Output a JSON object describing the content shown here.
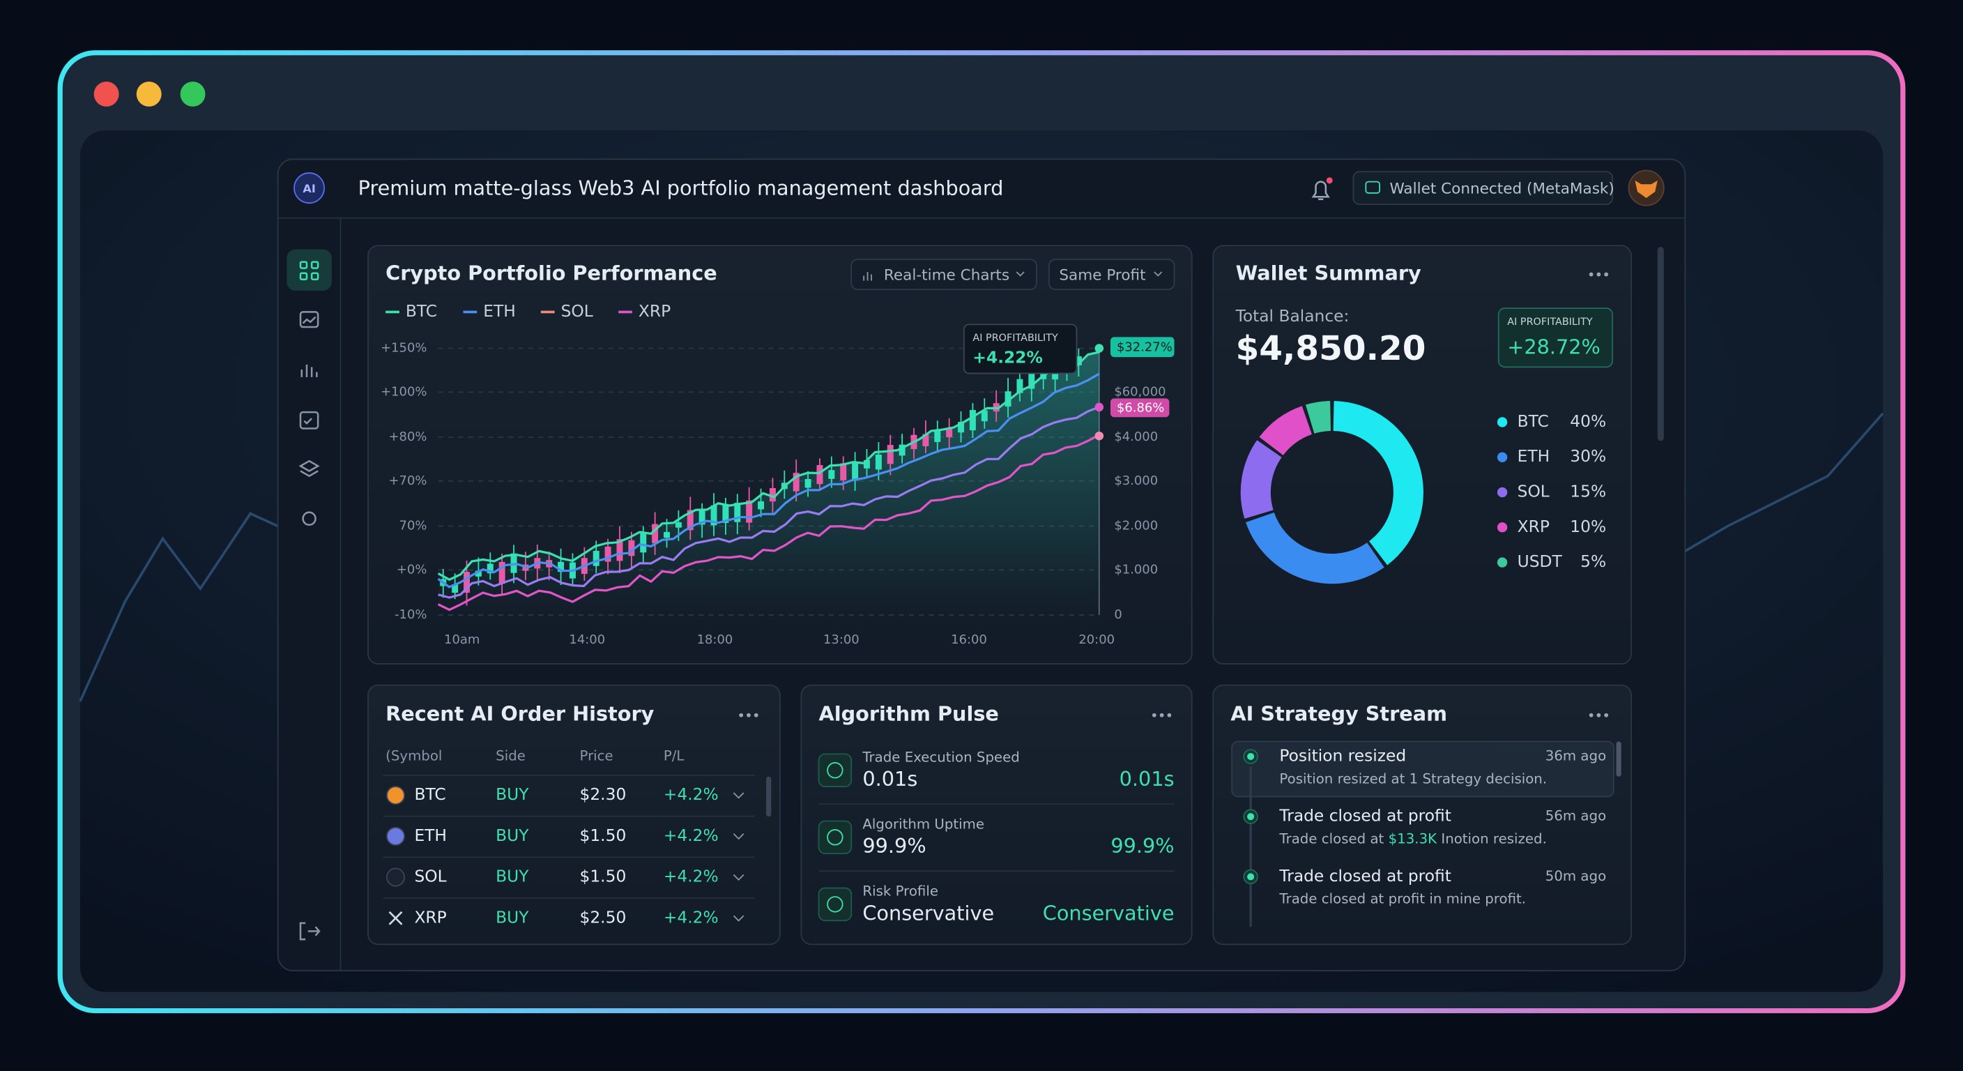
{
  "window": {
    "logo": "AI",
    "title": "Premium matte-glass Web3 AI portfolio management dashboard",
    "wallet": "Wallet Connected (MetaMask)"
  },
  "performance": {
    "title": "Crypto Portfolio Performance",
    "controls": [
      "Real-time Charts",
      "Same Profit"
    ],
    "legend": [
      {
        "name": "BTC",
        "color": "#3ee0b0"
      },
      {
        "name": "ETH",
        "color": "#4a90f0"
      },
      {
        "name": "SOL",
        "color": "#f08a7a"
      },
      {
        "name": "XRP",
        "color": "#e056c8"
      }
    ],
    "yticks": [
      "+150%",
      "+100%",
      "+80%",
      "+70%",
      "70%",
      "+0%",
      "-10%"
    ],
    "y2ticks": [
      "$60,000",
      "$4.000",
      "$3.000",
      "$2.000",
      "$1.000",
      "0"
    ],
    "xticks": [
      "10am",
      "14:00",
      "18:00",
      "13:00",
      "16:00",
      "20:00"
    ],
    "tooltip": {
      "label": "AI PROFITABILITY",
      "value": "+4.22%"
    },
    "badges": [
      "$32.27%",
      "$6.86%"
    ]
  },
  "wallet": {
    "title": "Wallet Summary",
    "balance_label": "Total Balance:",
    "balance": "$4,850.20",
    "badge_label": "AI PROFITABILITY",
    "badge_value": "+28.72%",
    "assets": [
      "BTC",
      "ETH",
      "SOL",
      "XRP",
      "USDT"
    ],
    "values": [
      40,
      30,
      15,
      10,
      5
    ],
    "value_labels": [
      "40%",
      "30%",
      "15%",
      "10%",
      "5%"
    ],
    "colors": [
      "#1ee8f0",
      "#3b8cf0",
      "#8d6cf0",
      "#e050c8",
      "#3cc99c"
    ]
  },
  "orders": {
    "title": "Recent AI Order History",
    "columns": [
      "(Symbol",
      "Side",
      "Price",
      "P/L"
    ],
    "rows": [
      [
        "BTC",
        "BUY",
        "$2.30",
        "+4.2%"
      ],
      [
        "ETH",
        "BUY",
        "$1.50",
        "+4.2%"
      ],
      [
        "SOL",
        "BUY",
        "$1.50",
        "+4.2%"
      ],
      [
        "XRP",
        "BUY",
        "$2.50",
        "+4.2%"
      ]
    ]
  },
  "pulse": {
    "title": "Algorithm Pulse",
    "items": [
      {
        "label": "Trade Execution Speed",
        "value": "0.01s"
      },
      {
        "label": "Algorithm Uptime",
        "value": "99.9%"
      },
      {
        "label": "Risk Profile",
        "value": "Conservative"
      }
    ]
  },
  "stream": {
    "title": "AI Strategy Stream",
    "items": [
      {
        "title": "Position resized",
        "desc": [
          "Position resized at 1 Strategy decision."
        ],
        "time": "36m ago"
      },
      {
        "title": "Trade closed at profit",
        "desc": [
          "Trade closed at ",
          "$13.3K",
          " Inotion resized."
        ],
        "time": "56m ago"
      },
      {
        "title": "Trade closed at profit",
        "desc": [
          "Trade closed at profit in mine profit."
        ],
        "time": "50m ago"
      }
    ]
  }
}
